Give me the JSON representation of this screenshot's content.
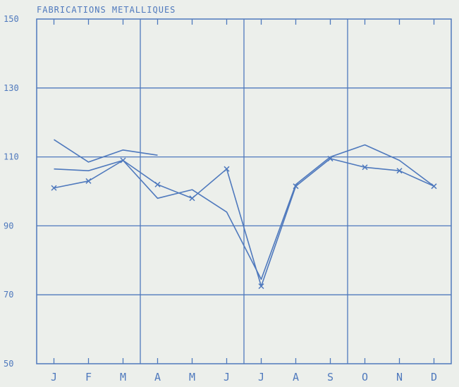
{
  "chart_data": {
    "type": "line",
    "title": "FABRICATIONS METALLIQUES",
    "xlabel": "",
    "ylabel": "",
    "categories": [
      "J",
      "F",
      "M",
      "A",
      "M",
      "J",
      "J",
      "A",
      "S",
      "O",
      "N",
      "D"
    ],
    "ylim": [
      50,
      150
    ],
    "yticks": [
      50,
      70,
      90,
      110,
      130,
      150
    ],
    "grid": true,
    "series": [
      {
        "marker": "none",
        "values": [
          115,
          108.5,
          112,
          110.5,
          null,
          null,
          null,
          null,
          null,
          null,
          null,
          null
        ]
      },
      {
        "marker": "none",
        "values": [
          106.5,
          106,
          109,
          98,
          100.5,
          94,
          74.5,
          102,
          110,
          113.5,
          109,
          101.5
        ]
      },
      {
        "marker": "x",
        "values": [
          101,
          103,
          109,
          102,
          98,
          106.5,
          72.5,
          101.5,
          109.5,
          107,
          106,
          101.5
        ]
      }
    ],
    "colors": {
      "line": "#4f79bd",
      "grid": "#4f79bd",
      "background": "#ecefeb"
    }
  }
}
